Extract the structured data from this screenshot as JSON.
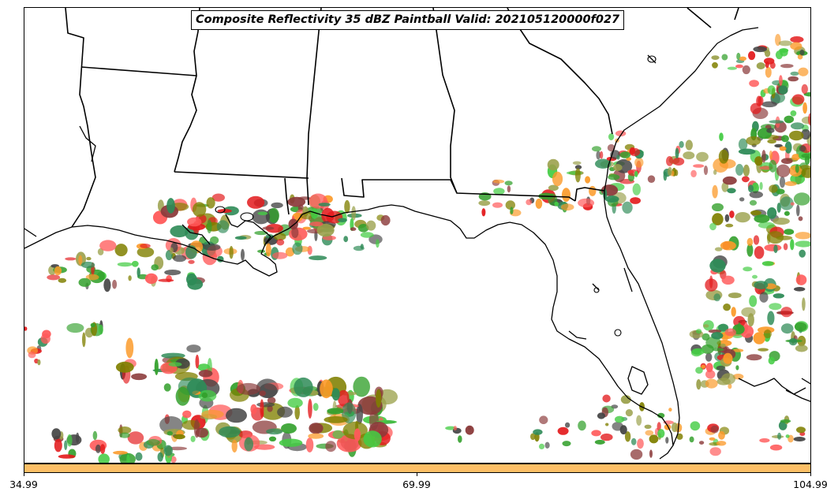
{
  "title": "Composite Reflectivity 35 dBZ Paintball Valid: 202105120000f027",
  "colorbar": {
    "color": "#fdbf66",
    "ticks": [
      "34.99",
      "69.99",
      "104.99"
    ]
  },
  "member_colors": [
    "#e31a1c",
    "#fb9a29",
    "#33a02c",
    "#8b3a3a",
    "#808000",
    "#2e8b57",
    "#444444",
    "#ff5a5a",
    "#9aa04a",
    "#44cc44"
  ],
  "map": {
    "region": "US Gulf Coast and Southeast",
    "features": [
      "state-borders",
      "coastline",
      "precipitation-cells"
    ]
  }
}
